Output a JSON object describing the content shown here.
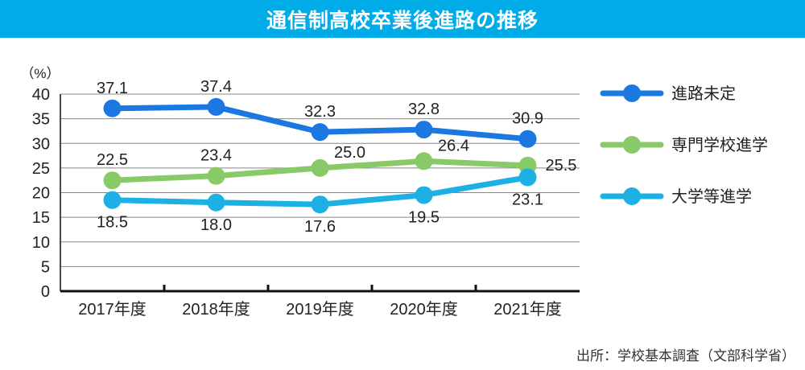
{
  "title": "通信制高校卒業後進路の推移",
  "source": "出所：学校基本調査（文部科学省）",
  "chart_data": {
    "type": "line",
    "title": "通信制高校卒業後進路の推移",
    "ylabel": "（%）",
    "categories": [
      "2017年度",
      "2018年度",
      "2019年度",
      "2020年度",
      "2021年度"
    ],
    "ylim": [
      0,
      40
    ],
    "yticks": [
      0,
      5,
      10,
      15,
      20,
      25,
      30,
      35,
      40
    ],
    "grid": true,
    "legend_position": "right",
    "series": [
      {
        "name": "進路未定",
        "color": "#1a78e0",
        "values": [
          37.1,
          37.4,
          32.3,
          32.8,
          30.9
        ],
        "labels": [
          "37.1",
          "37.4",
          "32.3",
          "32.8",
          "30.9"
        ],
        "label_pos": [
          "above",
          "above",
          "above",
          "above",
          "above"
        ]
      },
      {
        "name": "専門学校進学",
        "color": "#88c968",
        "values": [
          22.5,
          23.4,
          25.0,
          26.4,
          25.5
        ],
        "labels": [
          "22.5",
          "23.4",
          "25.0",
          "26.4",
          "25.5"
        ],
        "label_pos": [
          "above",
          "above",
          "above-right",
          "above-right",
          "right"
        ]
      },
      {
        "name": "大学等進学",
        "color": "#1cb0e4",
        "values": [
          18.5,
          18.0,
          17.6,
          19.5,
          23.1
        ],
        "labels": [
          "18.5",
          "18.0",
          "17.6",
          "19.5",
          "23.1"
        ],
        "label_pos": [
          "below",
          "below",
          "below",
          "below",
          "below"
        ]
      }
    ]
  }
}
